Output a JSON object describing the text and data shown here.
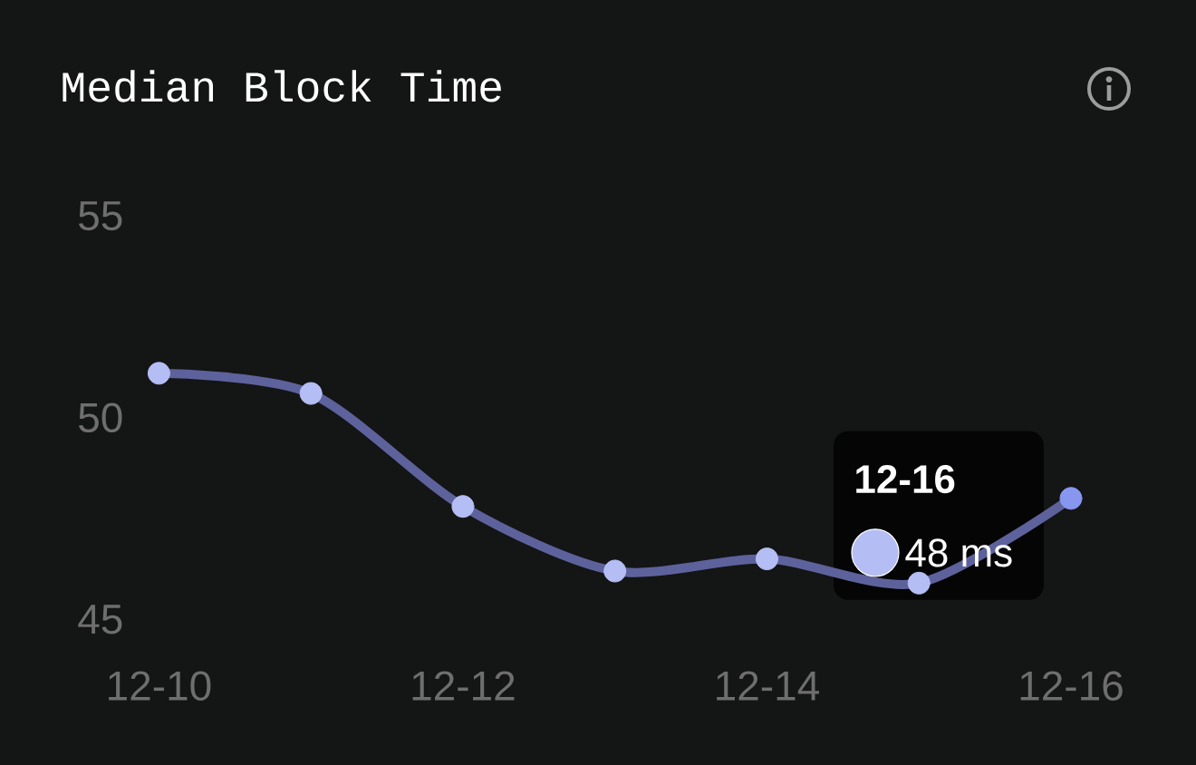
{
  "chart_data": {
    "type": "line",
    "title": "Median Block Time",
    "categories": [
      "12-10",
      null,
      "12-12",
      null,
      "12-14",
      null,
      "12-16"
    ],
    "values": [
      51.1,
      50.6,
      47.8,
      46.2,
      46.5,
      45.9,
      48
    ],
    "color": "#5d629c",
    "colors": [
      "#b4bef4",
      "#b4bef4",
      "#b4bef4",
      "#b4bef4",
      "#b4bef4",
      "#b4bef4",
      "#8797ef"
    ],
    "annotations": [
      "12-16",
      "48 ms"
    ],
    "ylim": [
      45,
      55
    ],
    "yticks": [
      45,
      50,
      55
    ],
    "marker": "circle"
  }
}
